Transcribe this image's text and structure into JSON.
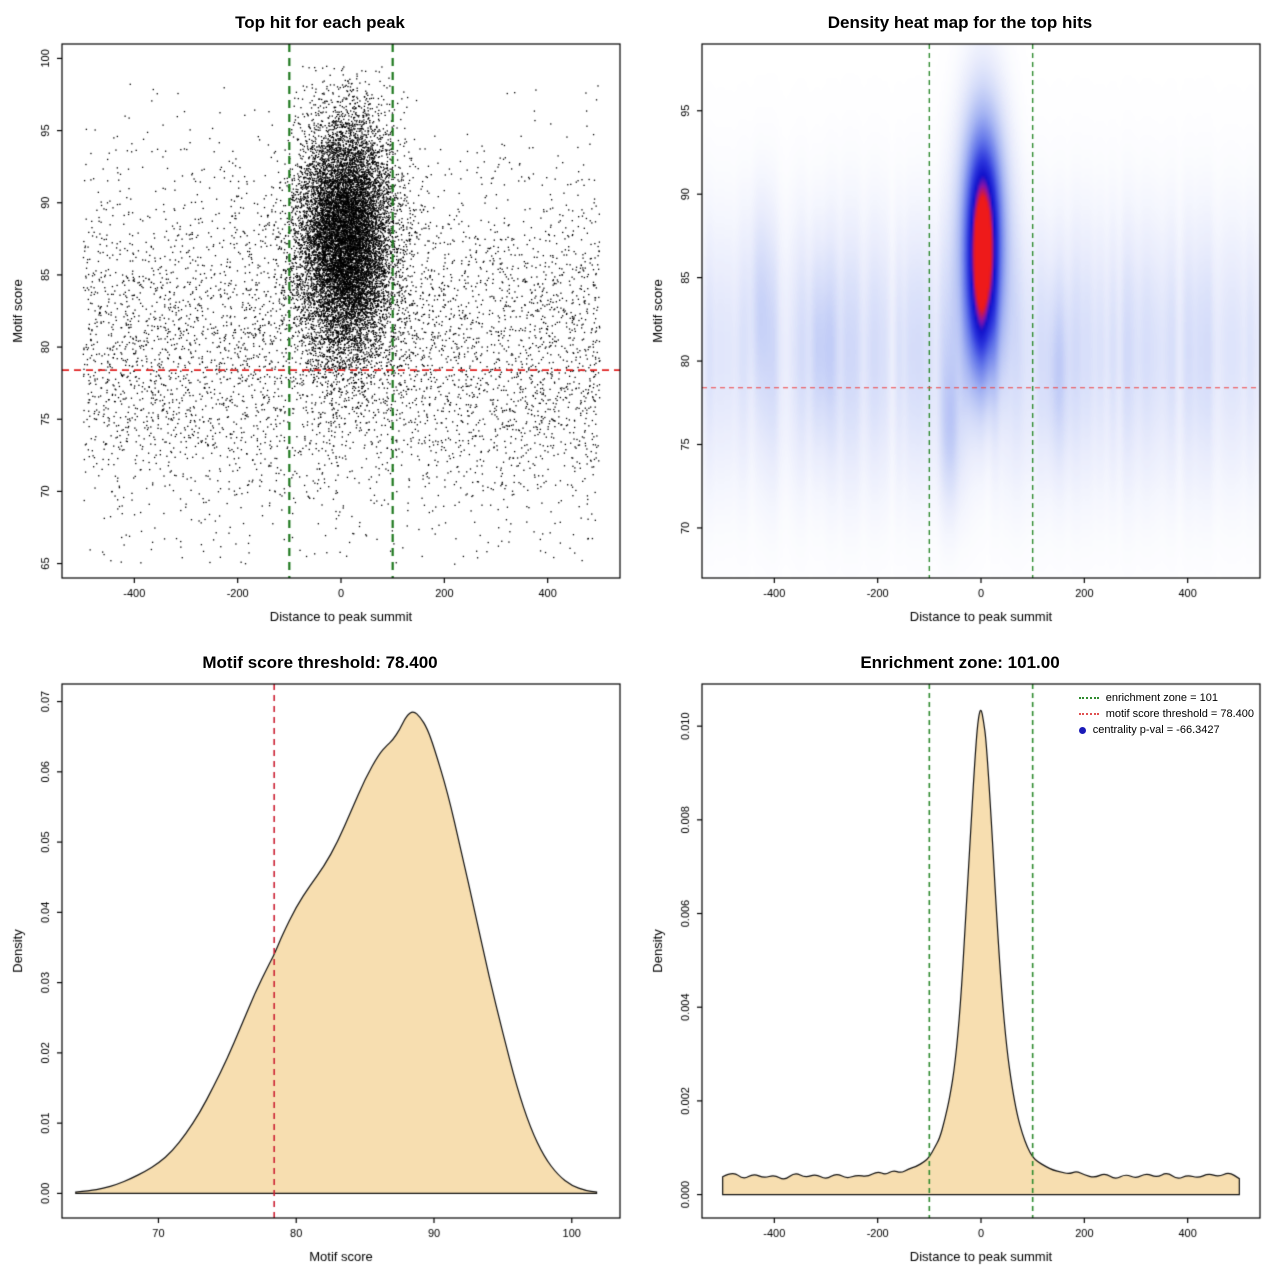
{
  "chart_data": [
    {
      "type": "scatter",
      "title": "Top hit for each peak",
      "xlabel": "Distance to peak summit",
      "ylabel": "Motif score",
      "xlim": [
        -540,
        540
      ],
      "ylim": [
        64,
        101
      ],
      "xtick_vals": [
        -400,
        -200,
        0,
        200,
        400
      ],
      "xtick_labels": [
        "-400",
        "-200",
        "0",
        "200",
        "400"
      ],
      "ytick_vals": [
        65,
        70,
        75,
        80,
        85,
        90,
        95,
        100
      ],
      "ytick_labels": [
        "65",
        "70",
        "75",
        "80",
        "85",
        "90",
        "95",
        "100"
      ],
      "vlines": [
        -100,
        100
      ],
      "vline_color": "#1f7a1f",
      "vline_width": 2.2,
      "vline_dash": [
        8,
        6
      ],
      "hlines": [
        78.4
      ],
      "hline_color": "#e02020",
      "hline_width": 1.8,
      "hline_dash": [
        7,
        5
      ],
      "point_color": "#000000",
      "seed": 42,
      "point_cloud": {
        "background": {
          "n": 5200,
          "x_min": -500,
          "x_max": 500,
          "y_mean": 80,
          "y_sd": 6.2,
          "y_min": 65,
          "y_max": 99
        },
        "cluster": {
          "n": 12500,
          "x_mean": 8,
          "x_sd": 46,
          "x_min": -500,
          "x_max": 500,
          "y_mean": 87.6,
          "y_sd": 4.2,
          "y_min": 66,
          "y_max": 99.5
        }
      }
    },
    {
      "type": "heatmap",
      "title": "Density heat map for the top hits",
      "xlabel": "Distance to peak summit",
      "ylabel": "Motif score",
      "xlim": [
        -540,
        540
      ],
      "ylim": [
        67,
        99
      ],
      "xtick_vals": [
        -400,
        -200,
        0,
        200,
        400
      ],
      "xtick_labels": [
        "-400",
        "-200",
        "0",
        "200",
        "400"
      ],
      "ytick_vals": [
        70,
        75,
        80,
        85,
        90,
        95
      ],
      "ytick_labels": [
        "70",
        "75",
        "80",
        "85",
        "90",
        "95"
      ],
      "vlines": [
        -100,
        100
      ],
      "vline_color": "#2e8b2e",
      "vline_width": 1.4,
      "vline_dash": [
        5,
        4
      ],
      "hlines": [
        78.4
      ],
      "hline_color": "#f04040",
      "hline_width": 1.2,
      "hline_dash": [
        5,
        4
      ],
      "seed": 7,
      "blob": {
        "x": 4,
        "y": 88.2,
        "sx": 28,
        "sy": 4.6,
        "amp": 1.0
      },
      "tail": {
        "x": 2,
        "y": 82.5,
        "sx": 22,
        "sy": 3.5,
        "amp": 0.38
      },
      "spots": [
        {
          "x": -310,
          "y": 81,
          "sx": 18,
          "sy": 4,
          "amp": 0.12
        },
        {
          "x": -60,
          "y": 75.5,
          "sx": 14,
          "sy": 3,
          "amp": 0.14
        },
        {
          "x": 150,
          "y": 79,
          "sx": 16,
          "sy": 3.5,
          "amp": 0.1
        },
        {
          "x": -430,
          "y": 84,
          "sx": 15,
          "sy": 4,
          "amp": 0.1
        }
      ],
      "background": {
        "amp": 0.1,
        "y_center": 80.5,
        "y_sd": 5.5
      },
      "colormap": [
        [
          0,
          "#ffffff"
        ],
        [
          0.06,
          "#f0f2fd"
        ],
        [
          0.18,
          "#d3dbf9"
        ],
        [
          0.35,
          "#a5b4f3"
        ],
        [
          0.55,
          "#6477ea"
        ],
        [
          0.72,
          "#2b35dd"
        ],
        [
          0.84,
          "#1212cc"
        ],
        [
          0.92,
          "#8c14a8"
        ],
        [
          1,
          "#ee1a1a"
        ]
      ]
    },
    {
      "type": "area",
      "title": "Motif score threshold: 78.400",
      "xlabel": "Motif score",
      "ylabel": "Density",
      "xlim": [
        63,
        103.5
      ],
      "ylim": [
        -0.0035,
        0.0725
      ],
      "xtick_vals": [
        70,
        80,
        90,
        100
      ],
      "xtick_labels": [
        "70",
        "80",
        "90",
        "100"
      ],
      "ytick_vals": [
        0,
        0.01,
        0.02,
        0.03,
        0.04,
        0.05,
        0.06,
        0.07
      ],
      "ytick_labels": [
        "0.00",
        "0.01",
        "0.02",
        "0.03",
        "0.04",
        "0.05",
        "0.06",
        "0.07"
      ],
      "vlines": [
        78.4
      ],
      "vline_color": "#cc2233",
      "vline_width": 1.6,
      "vline_dash": [
        6,
        5
      ],
      "fill": "#f7deb0",
      "line": "#111111",
      "x": [
        64,
        65,
        66,
        67,
        68,
        69,
        70,
        71,
        72,
        73,
        74,
        75,
        76,
        77,
        78,
        78.4,
        79,
        80,
        81,
        82,
        83,
        84,
        85,
        86,
        86.6,
        87,
        87.5,
        88,
        88.5,
        89,
        89.5,
        90,
        91,
        92,
        93,
        94,
        95,
        96,
        97,
        98,
        99,
        100,
        101,
        101.8
      ],
      "y": [
        0.0002,
        0.0004,
        0.0007,
        0.0013,
        0.0021,
        0.0031,
        0.0043,
        0.006,
        0.0085,
        0.0115,
        0.0152,
        0.0192,
        0.0238,
        0.0285,
        0.0325,
        0.034,
        0.0368,
        0.0408,
        0.0438,
        0.0465,
        0.05,
        0.0545,
        0.059,
        0.0625,
        0.0638,
        0.0645,
        0.066,
        0.068,
        0.0687,
        0.0678,
        0.0662,
        0.0635,
        0.057,
        0.0485,
        0.0398,
        0.0308,
        0.0228,
        0.0152,
        0.0093,
        0.0052,
        0.0026,
        0.0011,
        0.0004,
        0.0002
      ]
    },
    {
      "type": "area",
      "title": "Enrichment zone: 101.00",
      "xlabel": "Distance to peak summit",
      "ylabel": "Density",
      "xlim": [
        -540,
        540
      ],
      "ylim": [
        -0.0005,
        0.0109
      ],
      "xtick_vals": [
        -400,
        -200,
        0,
        200,
        400
      ],
      "xtick_labels": [
        "-400",
        "-200",
        "0",
        "200",
        "400"
      ],
      "ytick_vals": [
        0,
        0.002,
        0.004,
        0.006,
        0.008,
        0.01
      ],
      "ytick_labels": [
        "0.000",
        "0.002",
        "0.004",
        "0.006",
        "0.008",
        "0.010"
      ],
      "vlines": [
        -100,
        100
      ],
      "vline_color": "#2e8b2e",
      "vline_width": 1.6,
      "vline_dash": [
        5,
        4
      ],
      "fill": "#f7deb0",
      "line": "#111111",
      "x": [
        -500,
        -480,
        -460,
        -440,
        -420,
        -400,
        -380,
        -360,
        -340,
        -320,
        -300,
        -280,
        -260,
        -240,
        -220,
        -200,
        -185,
        -170,
        -155,
        -140,
        -125,
        -110,
        -100,
        -90,
        -80,
        -70,
        -60,
        -50,
        -40,
        -30,
        -20,
        -10,
        -5,
        0,
        5,
        10,
        20,
        30,
        40,
        50,
        60,
        70,
        80,
        90,
        100,
        110,
        125,
        140,
        155,
        170,
        185,
        200,
        220,
        240,
        260,
        280,
        300,
        320,
        340,
        360,
        380,
        400,
        420,
        440,
        460,
        480,
        500
      ],
      "y": [
        0.00038,
        0.0005,
        0.00032,
        0.00045,
        0.00035,
        0.00042,
        0.0003,
        0.00048,
        0.00036,
        0.00044,
        0.00032,
        0.00046,
        0.00034,
        0.00042,
        0.00038,
        0.0005,
        0.00042,
        0.00052,
        0.00046,
        0.00055,
        0.0006,
        0.0007,
        0.0008,
        0.001,
        0.0012,
        0.0016,
        0.0021,
        0.0028,
        0.004,
        0.0058,
        0.0078,
        0.0096,
        0.0102,
        0.0104,
        0.0101,
        0.0097,
        0.008,
        0.006,
        0.0043,
        0.0031,
        0.0023,
        0.0017,
        0.0013,
        0.001,
        0.0008,
        0.0007,
        0.0006,
        0.00052,
        0.00048,
        0.00044,
        0.0005,
        0.00042,
        0.00036,
        0.00046,
        0.00032,
        0.00044,
        0.00034,
        0.00046,
        0.00036,
        0.00048,
        0.00032,
        0.00042,
        0.00035,
        0.00045,
        0.00038,
        0.00048,
        0.00034
      ],
      "legend": [
        {
          "label": "enrichment zone = 101",
          "swatch": "line",
          "color": "#2e8b2e"
        },
        {
          "label": "motif score threshold = 78.400",
          "swatch": "line",
          "color": "#e05050"
        },
        {
          "label": "centrality p-val = -66.3427",
          "swatch": "dot",
          "color": "#1a1ab8"
        }
      ]
    }
  ]
}
